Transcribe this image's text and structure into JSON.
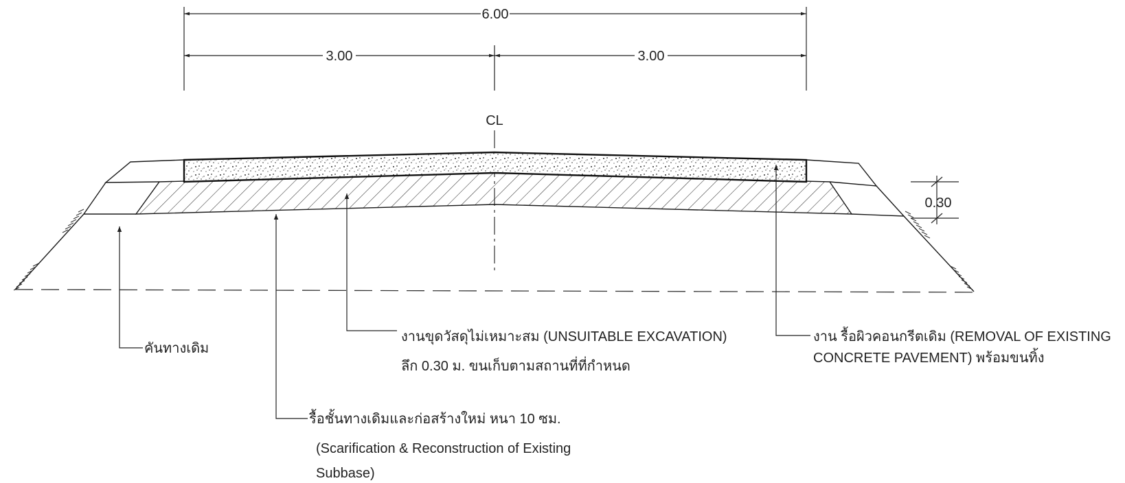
{
  "dimensions": {
    "total_width": "6.00",
    "half_left": "3.00",
    "half_right": "3.00",
    "depth": "0.30"
  },
  "centerline_label": "CL",
  "labels": {
    "existing_embankment": "คันทางเดิม",
    "unsuitable_line1": "งานขุดวัสดุไม่เหมาะสม (UNSUITABLE EXCAVATION)",
    "unsuitable_line2": "ลึก 0.30 ม. ขนเก็บตามสถานที่ที่กำหนด",
    "removal_line1": "งาน รื้อผิวคอนกรีตเดิม (REMOVAL OF EXISTING",
    "removal_line2": "CONCRETE PAVEMENT) พร้อมขนทิ้ง",
    "scarification_line1": "รื้อชั้นทางเดิมและก่อสร้างใหม่ หนา 10 ซม.",
    "scarification_line2": "(Scarification & Reconstruction of Existing",
    "scarification_line3": "Subbase)"
  }
}
